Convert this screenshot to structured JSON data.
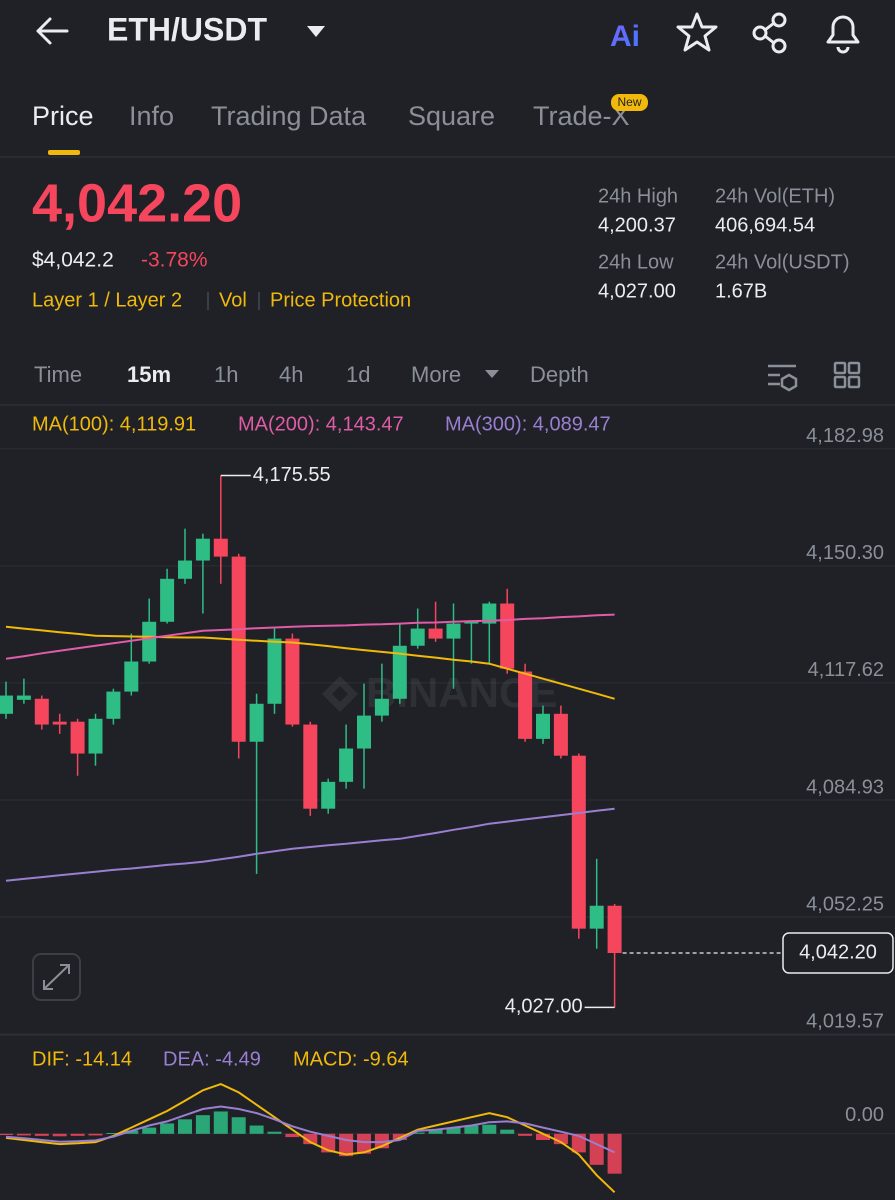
{
  "header": {
    "title": "ETH/USDT",
    "ai": "Ai"
  },
  "tabs": [
    "Price",
    "Info",
    "Trading Data",
    "Square",
    "Trade-X"
  ],
  "tab_badge": "New",
  "ticker": {
    "price": "4,042.20",
    "usd_price": "$4,042.2",
    "change": "-3.78%",
    "tags": [
      "Layer 1 / Layer 2",
      "Vol",
      "Price Protection"
    ],
    "stats": [
      {
        "label": "24h High",
        "value": "4,200.37"
      },
      {
        "label": "24h Vol(ETH)",
        "value": "406,694.54"
      },
      {
        "label": "24h Low",
        "value": "4,027.00"
      },
      {
        "label": "24h Vol(USDT)",
        "value": "1.67B"
      }
    ]
  },
  "timeframes": [
    "Time",
    "15m",
    "1h",
    "4h",
    "1d",
    "More",
    "Depth"
  ],
  "chart": {
    "type": "candlestick",
    "watermark": "BINANCE",
    "ylim": [
      4019.3,
      4194.4
    ],
    "yticks": [
      {
        "value": 4182.98,
        "label": "4,182.98"
      },
      {
        "value": 4150.3,
        "label": "4,150.30"
      },
      {
        "value": 4117.62,
        "label": "4,117.62"
      },
      {
        "value": 4084.93,
        "label": "4,084.93"
      },
      {
        "value": 4052.25,
        "label": "4,052.25"
      },
      {
        "value": 4019.57,
        "label": "4,019.57"
      }
    ],
    "up_color": "#2ebd85",
    "down_color": "#f6465d",
    "open": [
      4109.0,
      4112.9,
      4113.2,
      4106.8,
      4106.8,
      4097.9,
      4107.6,
      4115.2,
      4123.6,
      4134.7,
      4146.7,
      4151.8,
      4157.9,
      4152.9,
      4101.2,
      4111.8,
      4130.0,
      4106.0,
      4082.5,
      4090.0,
      4099.3,
      4108.5,
      4113.2,
      4128.0,
      4132.8,
      4130.0,
      4134.2,
      4134.2,
      4139.8,
      4120.8,
      4102.0,
      4109.0,
      4097.3,
      4049.0,
      4055.4
    ],
    "close": [
      4114.1,
      4114.1,
      4106.0,
      4106.0,
      4097.9,
      4107.6,
      4115.2,
      4123.6,
      4134.7,
      4146.7,
      4151.8,
      4157.9,
      4152.9,
      4101.2,
      4111.8,
      4130.0,
      4106.0,
      4082.5,
      4090.0,
      4099.3,
      4108.5,
      4113.2,
      4128.0,
      4132.8,
      4130.0,
      4134.2,
      4134.7,
      4139.8,
      4121.6,
      4102.0,
      4109.0,
      4097.3,
      4049.0,
      4055.4,
      4042.2
    ],
    "high": [
      4118.0,
      4118.8,
      4114.1,
      4109.0,
      4107.6,
      4109.0,
      4116.0,
      4131.4,
      4141.2,
      4149.5,
      4160.7,
      4159.3,
      4175.55,
      4153.7,
      4114.6,
      4132.8,
      4131.4,
      4106.8,
      4090.9,
      4106.0,
      4117.4,
      4123.0,
      4134.2,
      4138.4,
      4140.3,
      4139.8,
      4135.0,
      4140.3,
      4143.9,
      4123.0,
      4111.3,
      4111.3,
      4097.9,
      4068.5,
      4055.9
    ],
    "low": [
      4107.6,
      4111.8,
      4104.6,
      4103.4,
      4091.7,
      4094.5,
      4106.0,
      4114.1,
      4123.0,
      4134.2,
      4145.3,
      4137.0,
      4145.3,
      4096.5,
      4064.3,
      4109.0,
      4105.4,
      4080.5,
      4081.1,
      4088.1,
      4088.1,
      4106.8,
      4111.8,
      4127.2,
      4129.1,
      4116.0,
      4123.0,
      4123.0,
      4120.2,
      4101.2,
      4100.6,
      4096.5,
      4046.2,
      4043.4,
      4027.0
    ],
    "ma": [
      {
        "label": "MA(100): 4,119.91",
        "color": "#f0b90b",
        "values": [
          4133.3,
          4132.8,
          4132.3,
          4131.8,
          4131.3,
          4130.8,
          4130.7,
          4130.6,
          4130.5,
          4130.4,
          4130.3,
          4130.3,
          4130.0,
          4129.7,
          4129.4,
          4129.1,
          4128.9,
          4128.4,
          4127.9,
          4127.3,
          4126.8,
          4126.3,
          4125.8,
          4125.2,
          4124.7,
          4124.1,
          4123.6,
          4123.0,
          4121.6,
          4120.2,
          4118.8,
          4117.4,
          4116.0,
          4114.6,
          4113.2
        ]
      },
      {
        "label": "MA(200): 4,143.47",
        "color": "#e05ca6",
        "values": [
          4124.4,
          4125.1,
          4125.9,
          4126.6,
          4127.3,
          4128.0,
          4128.7,
          4129.4,
          4130.1,
          4130.8,
          4131.5,
          4132.2,
          4132.4,
          4132.6,
          4132.9,
          4133.1,
          4133.3,
          4133.5,
          4133.6,
          4133.7,
          4133.9,
          4134.0,
          4134.2,
          4134.4,
          4134.5,
          4134.7,
          4134.9,
          4135.0,
          4135.2,
          4135.5,
          4135.7,
          4136.0,
          4136.2,
          4136.5,
          4136.7
        ]
      },
      {
        "label": "MA(300): 4,089.47",
        "color": "#9a7fd1",
        "values": [
          4062.4,
          4062.9,
          4063.4,
          4063.9,
          4064.4,
          4064.9,
          4065.4,
          4065.8,
          4066.3,
          4066.8,
          4067.2,
          4067.7,
          4068.4,
          4069.1,
          4069.9,
          4070.6,
          4071.3,
          4071.8,
          4072.3,
          4072.7,
          4073.2,
          4073.7,
          4074.1,
          4074.9,
          4075.7,
          4076.6,
          4077.4,
          4078.3,
          4078.9,
          4079.5,
          4080.1,
          4080.7,
          4081.3,
          4081.9,
          4082.5
        ]
      }
    ],
    "high_marker": {
      "value": 4175.55,
      "label": "4,175.55"
    },
    "low_marker": {
      "value": 4027.0,
      "label": "4,027.00"
    },
    "last_price": {
      "value": 4042.2,
      "label": "4,042.20"
    }
  },
  "macd": {
    "ylim": [
      -16,
      13
    ],
    "yticks": [
      {
        "value": 0,
        "label": "0.00"
      }
    ],
    "dif": {
      "label": "DIF: -14.14",
      "color": "#f0b90b",
      "values": [
        -1,
        -1.5,
        -2,
        -2.5,
        -2.3,
        -2,
        -0.5,
        1.5,
        3.5,
        5.5,
        8,
        10.5,
        12,
        10,
        7,
        4,
        1,
        -2,
        -4,
        -5,
        -4.5,
        -3,
        -1,
        1,
        2,
        3,
        4,
        5,
        4,
        2,
        0,
        -2,
        -5,
        -10,
        -14.14
      ]
    },
    "dea": {
      "label": "DEA: -4.49",
      "color": "#9a7fd1",
      "values": [
        -0.7,
        -1.1,
        -1.5,
        -1.9,
        -1.8,
        -1.6,
        -0.7,
        0.7,
        2,
        3,
        4.5,
        6,
        6.6,
        6,
        5,
        3.5,
        1.8,
        0.5,
        -0.5,
        -1.5,
        -2,
        -2,
        -1.5,
        0.7,
        1,
        1.5,
        2,
        2.8,
        3,
        2.5,
        1.5,
        0.5,
        -0.5,
        -2.5,
        -4.49
      ]
    },
    "histogram": {
      "label": "MACD: -9.64",
      "values": [
        -0.3,
        -0.4,
        -0.5,
        -0.6,
        -0.5,
        -0.4,
        0.2,
        0.8,
        1.5,
        2.5,
        3.5,
        4.5,
        5.4,
        4.0,
        2.0,
        0.5,
        -0.8,
        -2.5,
        -4.5,
        -5.4,
        -4.8,
        -3.5,
        -1.5,
        0.3,
        1.0,
        1.5,
        2.0,
        2.2,
        1.0,
        -0.5,
        -1.5,
        -2.5,
        -4.5,
        -7.5,
        -9.64
      ]
    }
  }
}
